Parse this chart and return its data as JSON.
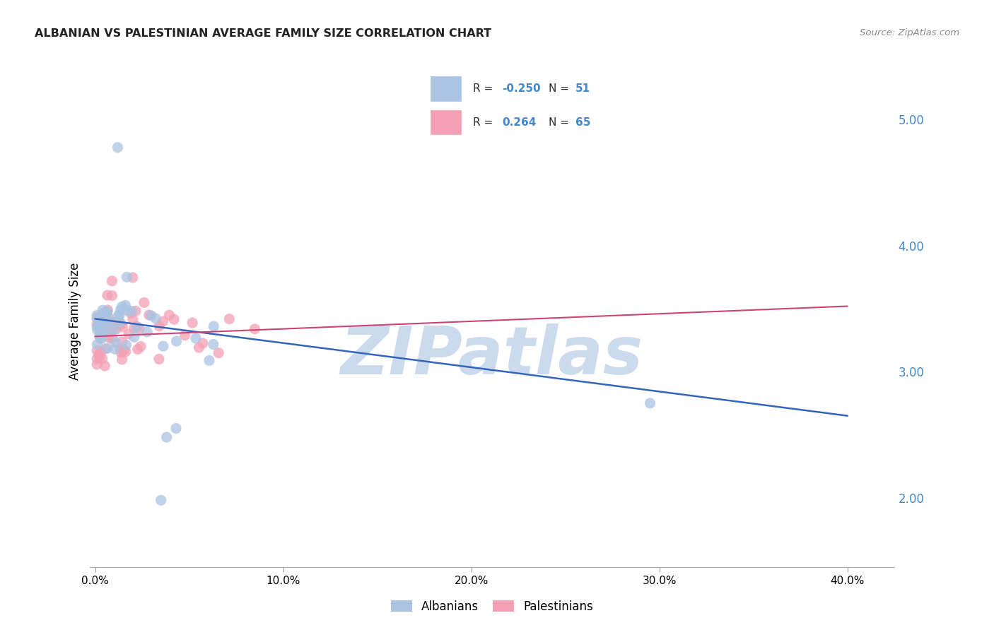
{
  "title": "ALBANIAN VS PALESTINIAN AVERAGE FAMILY SIZE CORRELATION CHART",
  "source": "Source: ZipAtlas.com",
  "ylabel": "Average Family Size",
  "xlabel_ticks": [
    "0.0%",
    "10.0%",
    "20.0%",
    "30.0%",
    "40.0%"
  ],
  "xlabel_vals": [
    0.0,
    0.1,
    0.2,
    0.3,
    0.4
  ],
  "ylabel_ticks": [
    2.0,
    3.0,
    4.0,
    5.0
  ],
  "ylim": [
    1.45,
    5.35
  ],
  "xlim": [
    -0.003,
    0.425
  ],
  "albanian_color": "#aac4e2",
  "albanian_edge": "#aac4e2",
  "palestinian_color": "#f4a0b5",
  "palestinian_edge": "#f4a0b5",
  "albanian_line_color": "#3366bb",
  "palestinian_line_color": "#cc4477",
  "tick_color": "#4488cc",
  "watermark": "ZIPatlas",
  "watermark_color": "#ccdaee",
  "alb_line_x0": 0.0,
  "alb_line_x1": 0.4,
  "alb_line_y0": 3.42,
  "alb_line_y1": 2.65,
  "pal_line_x0": 0.0,
  "pal_line_x1": 0.4,
  "pal_line_y0": 3.28,
  "pal_line_y1": 3.52,
  "background_color": "#ffffff",
  "grid_color": "#cccccc",
  "legend_bg": "#f5f5f5",
  "legend_border": "#cccccc"
}
